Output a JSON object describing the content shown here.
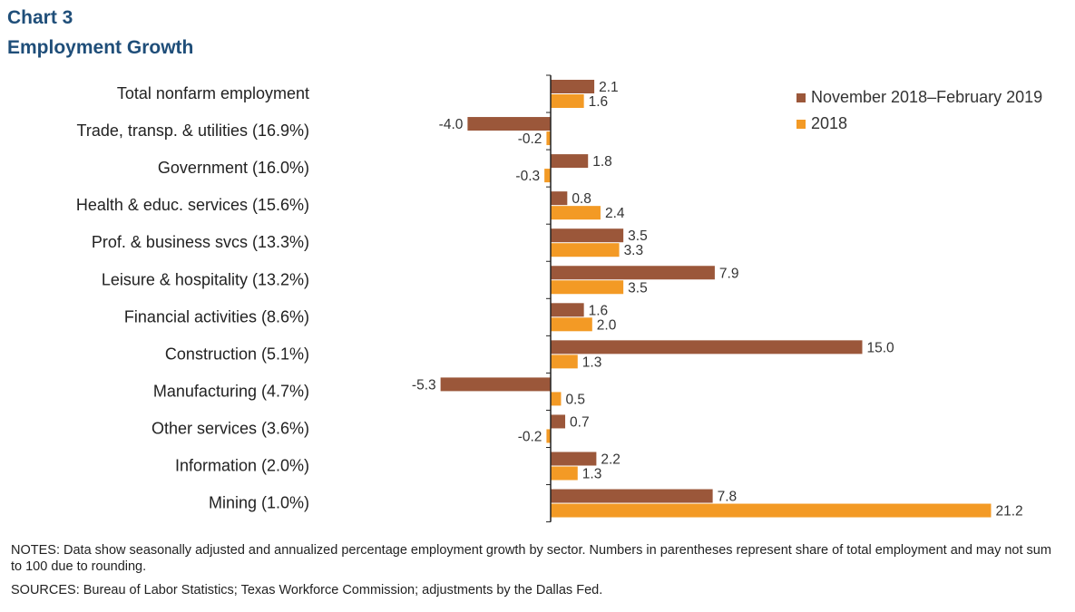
{
  "title_line1": "Chart 3",
  "title_line2": "Employment Growth",
  "notes": "NOTES: Data show seasonally adjusted and annualized percentage employment growth by sector. Numbers in parentheses represent share of total employment and may not sum to 100 due to rounding.",
  "sources": "SOURCES: Bureau of Labor Statistics; Texas Workforce Commission; adjustments by the Dallas Fed.",
  "colors": {
    "series1": "#9b573a",
    "series2": "#f39a25",
    "axis": "#222222"
  },
  "chart_data": {
    "type": "bar",
    "orientation": "horizontal",
    "categories": [
      "Total nonfarm employment",
      "Trade, transp. & utilities (16.9%)",
      "Government (16.0%)",
      "Health & educ. services (15.6%)",
      "Prof. & business svcs (13.3%)",
      "Leisure & hospitality (13.2%)",
      "Financial activities (8.6%)",
      "Construction (5.1%)",
      "Manufacturing (4.7%)",
      "Other services (3.6%)",
      "Information (2.0%)",
      "Mining (1.0%)"
    ],
    "series": [
      {
        "name": "November 2018–February 2019",
        "values": [
          2.1,
          -4.0,
          1.8,
          0.8,
          3.5,
          7.9,
          1.6,
          15.0,
          -5.3,
          0.7,
          2.2,
          7.8
        ],
        "labels": [
          "2.1",
          "-4.0",
          "1.8",
          "0.8",
          "3.5",
          "7.9",
          "1.6",
          "15.0",
          "-5.3",
          "0.7",
          "2.2",
          "7.8"
        ]
      },
      {
        "name": "2018",
        "values": [
          1.6,
          -0.2,
          -0.3,
          2.4,
          3.3,
          3.5,
          2.0,
          1.3,
          0.5,
          -0.2,
          1.3,
          21.2
        ],
        "labels": [
          "1.6",
          "-0.2",
          "-0.3",
          "2.4",
          "3.3",
          "3.5",
          "2.0",
          "1.3",
          "0.5",
          "-0.2",
          "1.3",
          "21.2"
        ]
      }
    ],
    "legend_position": "top-right",
    "grid": false,
    "xlabel": "",
    "ylabel": ""
  }
}
